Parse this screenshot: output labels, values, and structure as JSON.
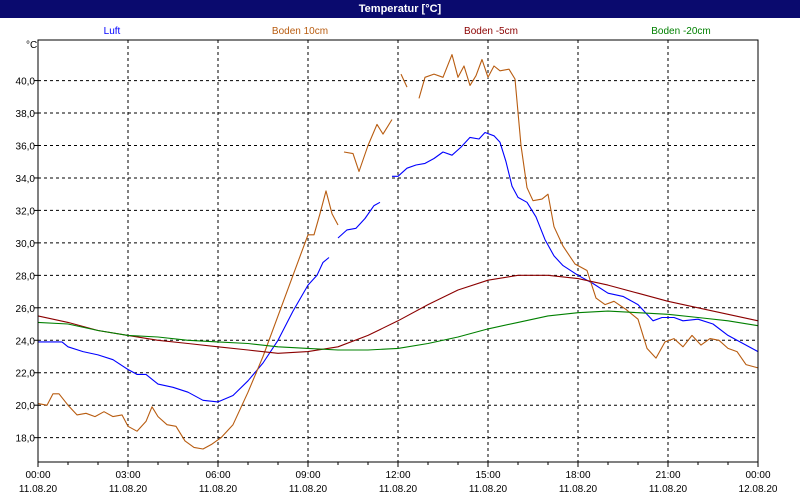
{
  "window": {
    "title": "Temperatur [°C]"
  },
  "colors": {
    "title_bar": "#0a0a6e",
    "grid": "#000000",
    "Luft": "#0000ff",
    "Boden 10cm": "#b85c10",
    "Boden -5cm": "#8b0000",
    "Boden -20cm": "#008000"
  },
  "chart_data": {
    "type": "line",
    "title": "Temperatur [°C]",
    "ylabel": "°C",
    "xlabel": "",
    "ylim": [
      16.5,
      42.5
    ],
    "xlim_hours": [
      0,
      24
    ],
    "grid": true,
    "legend_position": "top",
    "y_ticks": [
      "18,0",
      "20,0",
      "22,0",
      "24,0",
      "26,0",
      "28,0",
      "30,0",
      "32,0",
      "34,0",
      "36,0",
      "38,0",
      "40,0"
    ],
    "x_ticks": [
      {
        "time": "00:00",
        "date": "11.08.20"
      },
      {
        "time": "03:00",
        "date": "11.08.20"
      },
      {
        "time": "06:00",
        "date": "11.08.20"
      },
      {
        "time": "09:00",
        "date": "11.08.20"
      },
      {
        "time": "12:00",
        "date": "11.08.20"
      },
      {
        "time": "15:00",
        "date": "11.08.20"
      },
      {
        "time": "18:00",
        "date": "11.08.20"
      },
      {
        "time": "21:00",
        "date": "11.08.20"
      },
      {
        "time": "00:00",
        "date": "12.08.20"
      }
    ],
    "series": [
      {
        "name": "Luft",
        "segments": [
          [
            [
              0,
              23.9
            ],
            [
              0.5,
              23.9
            ],
            [
              0.8,
              23.9
            ],
            [
              1.0,
              23.6
            ],
            [
              1.5,
              23.3
            ],
            [
              2.0,
              23.1
            ],
            [
              2.5,
              22.8
            ],
            [
              3.0,
              22.2
            ],
            [
              3.3,
              21.9
            ],
            [
              3.6,
              21.9
            ],
            [
              4.0,
              21.3
            ],
            [
              4.5,
              21.1
            ],
            [
              5.0,
              20.8
            ],
            [
              5.5,
              20.3
            ],
            [
              6.0,
              20.2
            ],
            [
              6.5,
              20.6
            ],
            [
              7.0,
              21.5
            ],
            [
              7.5,
              22.6
            ],
            [
              8.0,
              24.0
            ],
            [
              8.5,
              25.8
            ],
            [
              9.0,
              27.4
            ],
            [
              9.3,
              28.0
            ],
            [
              9.5,
              28.8
            ],
            [
              9.7,
              29.1
            ]
          ],
          [
            [
              10.0,
              30.3
            ],
            [
              10.3,
              30.8
            ],
            [
              10.6,
              30.9
            ],
            [
              10.9,
              31.5
            ],
            [
              11.2,
              32.3
            ],
            [
              11.4,
              32.5
            ]
          ],
          [
            [
              11.8,
              34.1
            ],
            [
              12.0,
              34.1
            ],
            [
              12.3,
              34.6
            ],
            [
              12.6,
              34.8
            ],
            [
              12.9,
              34.9
            ],
            [
              13.2,
              35.2
            ],
            [
              13.5,
              35.6
            ],
            [
              13.8,
              35.4
            ],
            [
              14.1,
              35.9
            ],
            [
              14.4,
              36.5
            ],
            [
              14.7,
              36.4
            ],
            [
              14.9,
              36.8
            ],
            [
              15.2,
              36.6
            ],
            [
              15.4,
              36.2
            ],
            [
              15.6,
              35.0
            ],
            [
              15.8,
              33.5
            ],
            [
              16.0,
              32.8
            ],
            [
              16.3,
              32.5
            ],
            [
              16.6,
              31.6
            ],
            [
              16.9,
              30.2
            ],
            [
              17.2,
              29.2
            ],
            [
              17.5,
              28.6
            ],
            [
              18.0,
              28.0
            ],
            [
              18.5,
              27.5
            ],
            [
              19.0,
              26.9
            ],
            [
              19.5,
              26.7
            ],
            [
              20.0,
              26.2
            ],
            [
              20.5,
              25.2
            ],
            [
              20.8,
              25.4
            ],
            [
              21.2,
              25.4
            ],
            [
              21.5,
              25.2
            ],
            [
              22.0,
              25.3
            ],
            [
              22.5,
              25.0
            ],
            [
              23.0,
              24.3
            ],
            [
              23.5,
              23.8
            ],
            [
              24.0,
              23.3
            ]
          ]
        ]
      },
      {
        "name": "Boden 10cm",
        "segments": [
          [
            [
              0,
              20.1
            ],
            [
              0.3,
              20.0
            ],
            [
              0.5,
              20.7
            ],
            [
              0.7,
              20.7
            ],
            [
              1.0,
              20.0
            ],
            [
              1.3,
              19.4
            ],
            [
              1.6,
              19.5
            ],
            [
              1.9,
              19.3
            ],
            [
              2.2,
              19.6
            ],
            [
              2.5,
              19.3
            ],
            [
              2.8,
              19.4
            ],
            [
              3.0,
              18.7
            ],
            [
              3.3,
              18.4
            ],
            [
              3.6,
              19.0
            ],
            [
              3.8,
              19.9
            ],
            [
              4.0,
              19.3
            ],
            [
              4.3,
              18.8
            ],
            [
              4.6,
              18.7
            ],
            [
              4.9,
              17.8
            ],
            [
              5.2,
              17.4
            ],
            [
              5.5,
              17.3
            ],
            [
              5.8,
              17.6
            ],
            [
              6.1,
              18.0
            ],
            [
              6.5,
              18.8
            ],
            [
              7.0,
              20.8
            ],
            [
              7.5,
              23.0
            ],
            [
              8.0,
              25.5
            ],
            [
              8.5,
              28.0
            ],
            [
              9.0,
              30.5
            ],
            [
              9.2,
              30.5
            ],
            [
              9.4,
              31.8
            ],
            [
              9.6,
              33.2
            ],
            [
              9.8,
              31.8
            ],
            [
              10.0,
              31.1
            ]
          ],
          [
            [
              10.2,
              35.6
            ],
            [
              10.5,
              35.5
            ],
            [
              10.7,
              34.4
            ],
            [
              11.0,
              36.0
            ],
            [
              11.3,
              37.3
            ],
            [
              11.5,
              36.7
            ],
            [
              11.8,
              37.6
            ]
          ],
          [
            [
              12.1,
              40.4
            ],
            [
              12.3,
              39.6
            ]
          ],
          [
            [
              12.7,
              38.9
            ],
            [
              12.9,
              40.2
            ],
            [
              13.2,
              40.4
            ],
            [
              13.5,
              40.2
            ],
            [
              13.8,
              41.6
            ],
            [
              14.0,
              40.2
            ],
            [
              14.2,
              40.9
            ],
            [
              14.4,
              39.7
            ],
            [
              14.6,
              40.3
            ],
            [
              14.8,
              41.3
            ],
            [
              15.0,
              40.2
            ],
            [
              15.2,
              40.9
            ],
            [
              15.4,
              40.6
            ],
            [
              15.7,
              40.7
            ],
            [
              15.9,
              40.1
            ],
            [
              16.1,
              36.0
            ],
            [
              16.3,
              33.4
            ],
            [
              16.5,
              32.6
            ],
            [
              16.8,
              32.7
            ],
            [
              17.0,
              33.0
            ],
            [
              17.2,
              31.0
            ],
            [
              17.5,
              29.8
            ],
            [
              17.9,
              28.7
            ],
            [
              18.3,
              28.3
            ],
            [
              18.6,
              26.6
            ],
            [
              18.9,
              26.2
            ],
            [
              19.2,
              26.4
            ],
            [
              19.6,
              25.9
            ],
            [
              20.0,
              25.3
            ],
            [
              20.3,
              23.5
            ],
            [
              20.6,
              22.9
            ],
            [
              20.9,
              23.9
            ],
            [
              21.2,
              24.1
            ],
            [
              21.5,
              23.6
            ],
            [
              21.8,
              24.3
            ],
            [
              22.1,
              23.7
            ],
            [
              22.4,
              24.1
            ],
            [
              22.7,
              24.0
            ],
            [
              23.0,
              23.5
            ],
            [
              23.3,
              23.3
            ],
            [
              23.6,
              22.5
            ],
            [
              24.0,
              22.3
            ]
          ]
        ]
      },
      {
        "name": "Boden -5cm",
        "segments": [
          [
            [
              0,
              25.5
            ],
            [
              1,
              25.1
            ],
            [
              2,
              24.6
            ],
            [
              3,
              24.3
            ],
            [
              4,
              24.0
            ],
            [
              5,
              23.8
            ],
            [
              6,
              23.6
            ],
            [
              7,
              23.4
            ],
            [
              8,
              23.2
            ],
            [
              9,
              23.3
            ],
            [
              10,
              23.6
            ],
            [
              11,
              24.3
            ],
            [
              12,
              25.2
            ],
            [
              13,
              26.2
            ],
            [
              14,
              27.1
            ],
            [
              15,
              27.7
            ],
            [
              16,
              28.0
            ],
            [
              17,
              28.0
            ],
            [
              18,
              27.8
            ],
            [
              19,
              27.4
            ],
            [
              20,
              26.9
            ],
            [
              21,
              26.4
            ],
            [
              22,
              26.0
            ],
            [
              23,
              25.6
            ],
            [
              24,
              25.2
            ]
          ]
        ]
      },
      {
        "name": "Boden -20cm",
        "segments": [
          [
            [
              0,
              25.1
            ],
            [
              1,
              25.0
            ],
            [
              2,
              24.6
            ],
            [
              3,
              24.3
            ],
            [
              4,
              24.2
            ],
            [
              5,
              24.0
            ],
            [
              6,
              23.9
            ],
            [
              7,
              23.8
            ],
            [
              8,
              23.6
            ],
            [
              9,
              23.5
            ],
            [
              10,
              23.4
            ],
            [
              11,
              23.4
            ],
            [
              12,
              23.5
            ],
            [
              13,
              23.8
            ],
            [
              14,
              24.2
            ],
            [
              15,
              24.7
            ],
            [
              16,
              25.1
            ],
            [
              17,
              25.5
            ],
            [
              18,
              25.7
            ],
            [
              19,
              25.8
            ],
            [
              20,
              25.7
            ],
            [
              21,
              25.6
            ],
            [
              22,
              25.4
            ],
            [
              23,
              25.2
            ],
            [
              24,
              24.9
            ]
          ]
        ]
      }
    ]
  }
}
